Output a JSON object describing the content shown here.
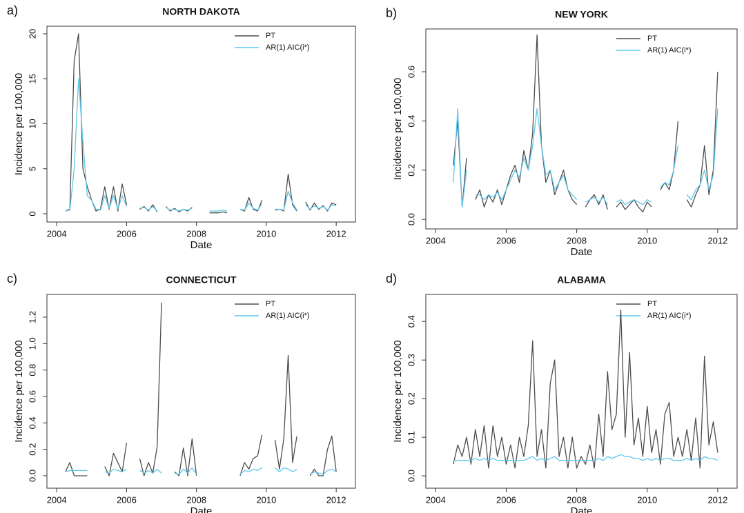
{
  "chart_data": [
    {
      "type": "line",
      "panel_label": "a)",
      "title": "NORTH DAKOTA",
      "x_label": "Date",
      "y_label": "Incidence per 100,000",
      "xlim": [
        2003.72,
        2012.55
      ],
      "xticks": [
        2004,
        2006,
        2008,
        2010,
        2012
      ],
      "ylim": [
        -0.92,
        20.84
      ],
      "yticks": [
        0,
        5,
        10,
        15,
        20
      ],
      "legend": "top-right",
      "x": [
        2004.25,
        2004.375,
        2004.5,
        2004.625,
        2004.75,
        2004.875,
        2005,
        2005.125,
        2005.25,
        2005.375,
        2005.5,
        2005.625,
        2005.75,
        2005.875,
        2006,
        2006.125,
        2006.25,
        2006.375,
        2006.5,
        2006.625,
        2006.75,
        2006.875,
        2007,
        2007.125,
        2007.25,
        2007.375,
        2007.5,
        2007.625,
        2007.75,
        2007.875,
        2008,
        2008.125,
        2008.25,
        2008.375,
        2008.5,
        2008.625,
        2008.75,
        2008.875,
        2009,
        2009.125,
        2009.25,
        2009.375,
        2009.5,
        2009.625,
        2009.75,
        2009.875,
        2010,
        2010.125,
        2010.25,
        2010.375,
        2010.5,
        2010.625,
        2010.75,
        2010.875,
        2011,
        2011.125,
        2011.25,
        2011.375,
        2011.5,
        2011.625,
        2011.75,
        2011.875,
        2012
      ],
      "series": [
        {
          "name": "PT",
          "color": "#4d4d4d",
          "values": [
            0.3,
            0.5,
            17,
            20,
            5,
            3,
            1.5,
            0.3,
            0.5,
            3,
            0.5,
            3,
            0.3,
            3.3,
            1,
            null,
            null,
            0.5,
            0.8,
            0.3,
            1,
            0.2,
            null,
            0.8,
            0.3,
            0.6,
            0.2,
            0.5,
            0.3,
            0.7,
            null,
            null,
            null,
            0.1,
            0.1,
            0.1,
            0.2,
            0.1,
            null,
            null,
            0.5,
            0.3,
            1.8,
            0.5,
            0.3,
            1.5,
            null,
            null,
            0.4,
            0.5,
            0.3,
            4.4,
            1,
            0.3,
            null,
            1.3,
            0.4,
            1.2,
            0.5,
            0.9,
            0.3,
            1.2,
            1.0
          ]
        },
        {
          "name": "AR(1) AIC(i*)",
          "color": "#5bc8ec",
          "values": [
            0.3,
            0.4,
            5,
            15,
            8,
            2,
            1.5,
            0.5,
            0.4,
            2,
            0.6,
            2,
            0.5,
            2,
            0.8,
            null,
            null,
            0.6,
            0.7,
            0.4,
            0.8,
            0.3,
            null,
            0.7,
            0.4,
            0.5,
            0.3,
            0.5,
            0.4,
            0.6,
            null,
            null,
            null,
            0.3,
            0.3,
            0.3,
            0.4,
            0.3,
            null,
            null,
            0.5,
            0.4,
            1.2,
            0.6,
            0.4,
            1.1,
            null,
            null,
            0.5,
            0.5,
            0.4,
            2.5,
            1.2,
            0.4,
            null,
            1.0,
            0.5,
            0.9,
            0.6,
            0.8,
            0.4,
            1.0,
            0.9
          ]
        }
      ]
    },
    {
      "type": "line",
      "panel_label": "b)",
      "title": "NEW YORK",
      "x_label": "Date",
      "y_label": "Incidence per 100,000",
      "xlim": [
        2003.72,
        2012.55
      ],
      "xticks": [
        2004,
        2006,
        2008,
        2010,
        2012
      ],
      "ylim": [
        -0.039,
        0.774
      ],
      "yticks": [
        {
          "value": 0,
          "label": "0.0"
        },
        0.2,
        0.4,
        0.6
      ],
      "legend": "top-right",
      "x": [
        2004.25,
        2004.375,
        2004.5,
        2004.625,
        2004.75,
        2004.875,
        2005,
        2005.125,
        2005.25,
        2005.375,
        2005.5,
        2005.625,
        2005.75,
        2005.875,
        2006,
        2006.125,
        2006.25,
        2006.375,
        2006.5,
        2006.625,
        2006.75,
        2006.875,
        2007,
        2007.125,
        2007.25,
        2007.375,
        2007.5,
        2007.625,
        2007.75,
        2007.875,
        2008,
        2008.125,
        2008.25,
        2008.375,
        2008.5,
        2008.625,
        2008.75,
        2008.875,
        2009,
        2009.125,
        2009.25,
        2009.375,
        2009.5,
        2009.625,
        2009.75,
        2009.875,
        2010,
        2010.125,
        2010.25,
        2010.375,
        2010.5,
        2010.625,
        2010.75,
        2010.875,
        2011,
        2011.125,
        2011.25,
        2011.375,
        2011.5,
        2011.625,
        2011.75,
        2011.875,
        2012
      ],
      "series": [
        {
          "name": "PT",
          "color": "#4d4d4d",
          "values": [
            null,
            null,
            0.22,
            0.4,
            0.05,
            0.25,
            null,
            0.08,
            0.12,
            0.05,
            0.1,
            0.07,
            0.12,
            0.06,
            0.12,
            0.18,
            0.22,
            0.15,
            0.28,
            0.2,
            0.35,
            0.75,
            0.3,
            0.15,
            0.2,
            0.1,
            0.15,
            0.2,
            0.12,
            0.08,
            0.06,
            null,
            0.05,
            0.08,
            0.1,
            0.06,
            0.1,
            0.04,
            null,
            0.05,
            0.07,
            0.04,
            0.06,
            0.08,
            0.05,
            0.03,
            0.07,
            0.05,
            null,
            0.12,
            0.15,
            0.12,
            0.2,
            0.4,
            null,
            0.08,
            0.05,
            0.1,
            0.14,
            0.3,
            0.1,
            0.2,
            0.6
          ]
        },
        {
          "name": "AR(1) AIC(i*)",
          "color": "#5bc8ec",
          "values": [
            null,
            null,
            0.15,
            0.45,
            0.05,
            0.2,
            null,
            0.1,
            0.1,
            0.08,
            0.1,
            0.09,
            0.11,
            0.08,
            0.12,
            0.16,
            0.2,
            0.17,
            0.25,
            0.2,
            0.3,
            0.45,
            0.3,
            0.18,
            0.2,
            0.12,
            0.15,
            0.18,
            0.12,
            0.1,
            0.08,
            null,
            0.07,
            0.08,
            0.09,
            0.07,
            0.09,
            0.06,
            null,
            0.07,
            0.08,
            0.06,
            0.07,
            0.08,
            0.07,
            0.06,
            0.08,
            0.07,
            null,
            0.13,
            0.15,
            0.14,
            0.2,
            0.3,
            null,
            0.1,
            0.08,
            0.12,
            0.14,
            0.2,
            0.12,
            0.18,
            0.45
          ]
        }
      ]
    },
    {
      "type": "line",
      "panel_label": "c)",
      "title": "CONNECTICUT",
      "x_label": "Date",
      "y_label": "Incidence per 100,000",
      "xlim": [
        2003.72,
        2012.55
      ],
      "xticks": [
        2004,
        2006,
        2008,
        2010,
        2012
      ],
      "ylim": [
        -0.094,
        1.372
      ],
      "yticks": [
        {
          "value": 0,
          "label": "0.0"
        },
        0.2,
        0.4,
        0.6,
        0.8,
        {
          "value": 1,
          "label": "1.0"
        },
        1.2
      ],
      "legend": "top-right",
      "x": [
        2004.25,
        2004.375,
        2004.5,
        2004.625,
        2004.75,
        2004.875,
        2005,
        2005.125,
        2005.25,
        2005.375,
        2005.5,
        2005.625,
        2005.75,
        2005.875,
        2006,
        2006.125,
        2006.25,
        2006.375,
        2006.5,
        2006.625,
        2006.75,
        2006.875,
        2007,
        2007.125,
        2007.25,
        2007.375,
        2007.5,
        2007.625,
        2007.75,
        2007.875,
        2008,
        2008.125,
        2008.25,
        2008.375,
        2008.5,
        2008.625,
        2008.75,
        2008.875,
        2009,
        2009.125,
        2009.25,
        2009.375,
        2009.5,
        2009.625,
        2009.75,
        2009.875,
        2010,
        2010.125,
        2010.25,
        2010.375,
        2010.5,
        2010.625,
        2010.75,
        2010.875,
        2011,
        2011.125,
        2011.25,
        2011.375,
        2011.5,
        2011.625,
        2011.75,
        2011.875,
        2012
      ],
      "series": [
        {
          "name": "PT",
          "color": "#4d4d4d",
          "values": [
            0.03,
            0.1,
            0,
            0,
            0,
            0,
            null,
            null,
            null,
            0.07,
            0,
            0.17,
            0.1,
            0.03,
            0.25,
            null,
            null,
            0.13,
            0,
            0.1,
            0.02,
            0.22,
            1.31,
            null,
            null,
            0.03,
            0,
            0.21,
            0,
            0.28,
            0,
            null,
            null,
            null,
            null,
            null,
            0,
            null,
            null,
            null,
            0,
            0.1,
            0.05,
            0.13,
            0.15,
            0.31,
            null,
            null,
            0.27,
            0.05,
            0.28,
            0.91,
            0.1,
            0.3,
            null,
            null,
            0,
            0.05,
            0,
            0,
            0.2,
            0.3,
            0.03
          ]
        },
        {
          "name": "AR(1) AIC(i*)",
          "color": "#5bc8ec",
          "values": [
            0.03,
            0.04,
            0.04,
            0.04,
            0.04,
            0.04,
            null,
            null,
            null,
            0.03,
            0.02,
            0.05,
            0.04,
            0.03,
            0.05,
            null,
            null,
            0.04,
            0.02,
            0.04,
            0.02,
            0.05,
            0.02,
            null,
            null,
            0.02,
            0.01,
            0.05,
            0.02,
            0.06,
            0.01,
            null,
            null,
            null,
            null,
            null,
            0.02,
            null,
            null,
            null,
            0.01,
            0.04,
            0.03,
            0.05,
            0.04,
            0.06,
            null,
            null,
            0.06,
            0.03,
            0.06,
            0.05,
            0.03,
            0.05,
            null,
            null,
            0.01,
            0.03,
            0.02,
            0.01,
            0.04,
            0.05,
            0.03
          ]
        }
      ]
    },
    {
      "type": "line",
      "panel_label": "d)",
      "title": "ALABAMA",
      "x_label": "Date",
      "y_label": "Incidence per 100,000",
      "xlim": [
        2003.72,
        2012.55
      ],
      "xticks": [
        2004,
        2006,
        2008,
        2010,
        2012
      ],
      "ylim": [
        -0.032,
        0.47
      ],
      "yticks": [
        {
          "value": 0,
          "label": "0.0"
        },
        0.1,
        0.2,
        0.3,
        0.4
      ],
      "legend": "top-right",
      "x": [
        2004.25,
        2004.375,
        2004.5,
        2004.625,
        2004.75,
        2004.875,
        2005,
        2005.125,
        2005.25,
        2005.375,
        2005.5,
        2005.625,
        2005.75,
        2005.875,
        2006,
        2006.125,
        2006.25,
        2006.375,
        2006.5,
        2006.625,
        2006.75,
        2006.875,
        2007,
        2007.125,
        2007.25,
        2007.375,
        2007.5,
        2007.625,
        2007.75,
        2007.875,
        2008,
        2008.125,
        2008.25,
        2008.375,
        2008.5,
        2008.625,
        2008.75,
        2008.875,
        2009,
        2009.125,
        2009.25,
        2009.375,
        2009.5,
        2009.625,
        2009.75,
        2009.875,
        2010,
        2010.125,
        2010.25,
        2010.375,
        2010.5,
        2010.625,
        2010.75,
        2010.875,
        2011,
        2011.125,
        2011.25,
        2011.375,
        2011.5,
        2011.625,
        2011.75,
        2011.875,
        2012
      ],
      "series": [
        {
          "name": "PT",
          "color": "#4d4d4d",
          "values": [
            0,
            null,
            0.03,
            0.08,
            0.05,
            0.1,
            0.03,
            0.12,
            0.05,
            0.13,
            0.02,
            0.13,
            0.05,
            0.1,
            0.03,
            0.08,
            0.02,
            0.1,
            0.05,
            0.13,
            0.35,
            0.05,
            0.12,
            0.02,
            0.24,
            0.3,
            0.05,
            0.1,
            0.02,
            0.1,
            0.02,
            0.05,
            0.03,
            0.08,
            0.02,
            0.16,
            0.05,
            0.27,
            0.12,
            0.16,
            0.43,
            0.1,
            0.32,
            0.08,
            0.15,
            0.05,
            0.18,
            0.06,
            0.12,
            0.03,
            0.16,
            0.19,
            0.05,
            0.1,
            0.05,
            0.12,
            0.04,
            0.15,
            0.02,
            0.31,
            0.08,
            0.14,
            0.06
          ]
        },
        {
          "name": "AR(1) AIC(i*)",
          "color": "#5bc8ec",
          "values": [
            0.04,
            null,
            0.04,
            0.04,
            0.04,
            0.04,
            0.04,
            0.045,
            0.04,
            0.045,
            0.04,
            0.045,
            0.04,
            0.04,
            0.04,
            0.04,
            0.04,
            0.04,
            0.04,
            0.045,
            0.05,
            0.04,
            0.045,
            0.04,
            0.045,
            0.05,
            0.04,
            0.04,
            0.04,
            0.04,
            0.04,
            0.04,
            0.04,
            0.04,
            0.04,
            0.045,
            0.04,
            0.05,
            0.045,
            0.05,
            0.055,
            0.05,
            0.05,
            0.045,
            0.045,
            0.04,
            0.045,
            0.04,
            0.045,
            0.04,
            0.045,
            0.045,
            0.04,
            0.04,
            0.04,
            0.045,
            0.04,
            0.045,
            0.04,
            0.05,
            0.045,
            0.045,
            0.04
          ]
        }
      ]
    }
  ]
}
